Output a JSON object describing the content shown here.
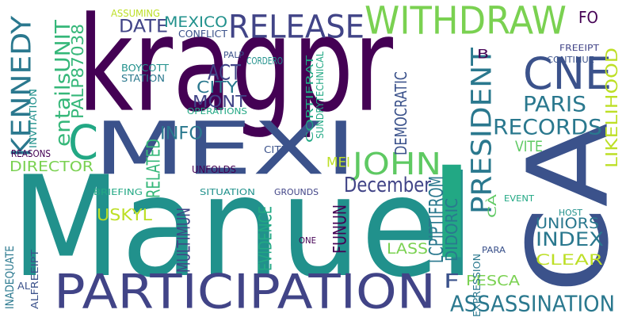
{
  "words": [
    {
      "text": "kragpr",
      "color": "#440154"
    },
    {
      "text": "Manuel",
      "color": "#21918c"
    },
    {
      "text": "CA",
      "color": "#3b528b"
    },
    {
      "text": "MEXI",
      "color": "#3b528b"
    },
    {
      "text": "PARTICIPATION",
      "color": "#414487"
    },
    {
      "text": "WITHDRAW",
      "color": "#7ad151"
    },
    {
      "text": "RELEASE",
      "color": "#414487"
    },
    {
      "text": "CNE",
      "color": "#3b528b"
    },
    {
      "text": "C",
      "color": "#22a884"
    },
    {
      "text": "I",
      "color": "#22a884"
    },
    {
      "text": "KENNEDY",
      "color": "#2a788e"
    },
    {
      "text": "JOHN",
      "color": "#5ec962"
    },
    {
      "text": "PRESIDENT",
      "color": "#2a788e"
    },
    {
      "text": "ASSASSINATION",
      "color": "#2a788e"
    },
    {
      "text": "December",
      "color": "#414487"
    },
    {
      "text": "RECORDS",
      "color": "#2a788e"
    },
    {
      "text": "PARIS",
      "color": "#2a788e"
    },
    {
      "text": "LIKELIHOOD",
      "color": "#bddf26"
    },
    {
      "text": "entailsUNIT",
      "color": "#35b779"
    },
    {
      "text": "PALP87038",
      "color": "#35b779"
    },
    {
      "text": "DATE",
      "color": "#414487"
    },
    {
      "text": "MEXICO",
      "color": "#21918c"
    },
    {
      "text": "ACT",
      "color": "#414487"
    },
    {
      "text": "CITY",
      "color": "#2a788e"
    },
    {
      "text": "MONT",
      "color": "#414487"
    },
    {
      "text": "INFO",
      "color": "#2a788e"
    },
    {
      "text": "DIRECTOR",
      "color": "#7ad151"
    },
    {
      "text": "RELATED",
      "color": "#35b779"
    },
    {
      "text": "USKYL",
      "color": "#bddf26"
    },
    {
      "text": "MULTIMUN",
      "color": "#414487"
    },
    {
      "text": "EVIDENCE",
      "color": "#22a884"
    },
    {
      "text": "FUNUN",
      "color": "#440154"
    },
    {
      "text": "LCPIPTIFROM",
      "color": "#2a788e"
    },
    {
      "text": "DEMOCRATIC",
      "color": "#3b528b"
    },
    {
      "text": "DIDORIC",
      "color": "#2a788e"
    },
    {
      "text": "VITE",
      "color": "#5ec962"
    },
    {
      "text": "UNIORS",
      "color": "#2a788e"
    },
    {
      "text": "INDEX",
      "color": "#2a788e"
    },
    {
      "text": "CLEAR",
      "color": "#bddf26"
    },
    {
      "text": "LASS",
      "color": "#7ad151"
    },
    {
      "text": "PESCA",
      "color": "#7ad151"
    },
    {
      "text": "MEI",
      "color": "#bddf26"
    },
    {
      "text": "FO",
      "color": "#440154"
    },
    {
      "text": "B",
      "color": "#440154"
    },
    {
      "text": "F",
      "color": "#3b528b"
    },
    {
      "text": "ASSUMING",
      "color": "#bddf26"
    },
    {
      "text": "CONFLICT",
      "color": "#3b528b"
    },
    {
      "text": "PALP",
      "color": "#3b528b"
    },
    {
      "text": "CORDERO",
      "color": "#21918c"
    },
    {
      "text": "BOYCOTT",
      "color": "#21918c"
    },
    {
      "text": "STATION",
      "color": "#2a788e"
    },
    {
      "text": "OPERATIONS",
      "color": "#22a884"
    },
    {
      "text": "INVITATION",
      "color": "#21918c"
    },
    {
      "text": "REASONS",
      "color": "#440154"
    },
    {
      "text": "UNFOLDS",
      "color": "#440154"
    },
    {
      "text": "CITE",
      "color": "#3b528b"
    },
    {
      "text": "BRIEFING",
      "color": "#22a884"
    },
    {
      "text": "SITUATION",
      "color": "#21918c"
    },
    {
      "text": "GROUNDS",
      "color": "#414487"
    },
    {
      "text": "FREEIPT",
      "color": "#414487"
    },
    {
      "text": "CONTINUE",
      "color": "#3b528b"
    },
    {
      "text": "CORTIFRAT",
      "color": "#22a884"
    },
    {
      "text": "SUNDRYTECHNICAL",
      "color": "#22a884"
    },
    {
      "text": "EVENT",
      "color": "#22a884"
    },
    {
      "text": "HOST",
      "color": "#21918c"
    },
    {
      "text": "PARA",
      "color": "#3b528b"
    },
    {
      "text": "EXPRESSION",
      "color": "#2a788e"
    },
    {
      "text": "CÀ",
      "color": "#5ec962"
    },
    {
      "text": "ONE",
      "color": "#440154"
    },
    {
      "text": "INADEQUATE",
      "color": "#2a788e"
    },
    {
      "text": "ALFREEIPT",
      "color": "#3b528b"
    },
    {
      "text": "AL",
      "color": "#3b528b"
    }
  ]
}
